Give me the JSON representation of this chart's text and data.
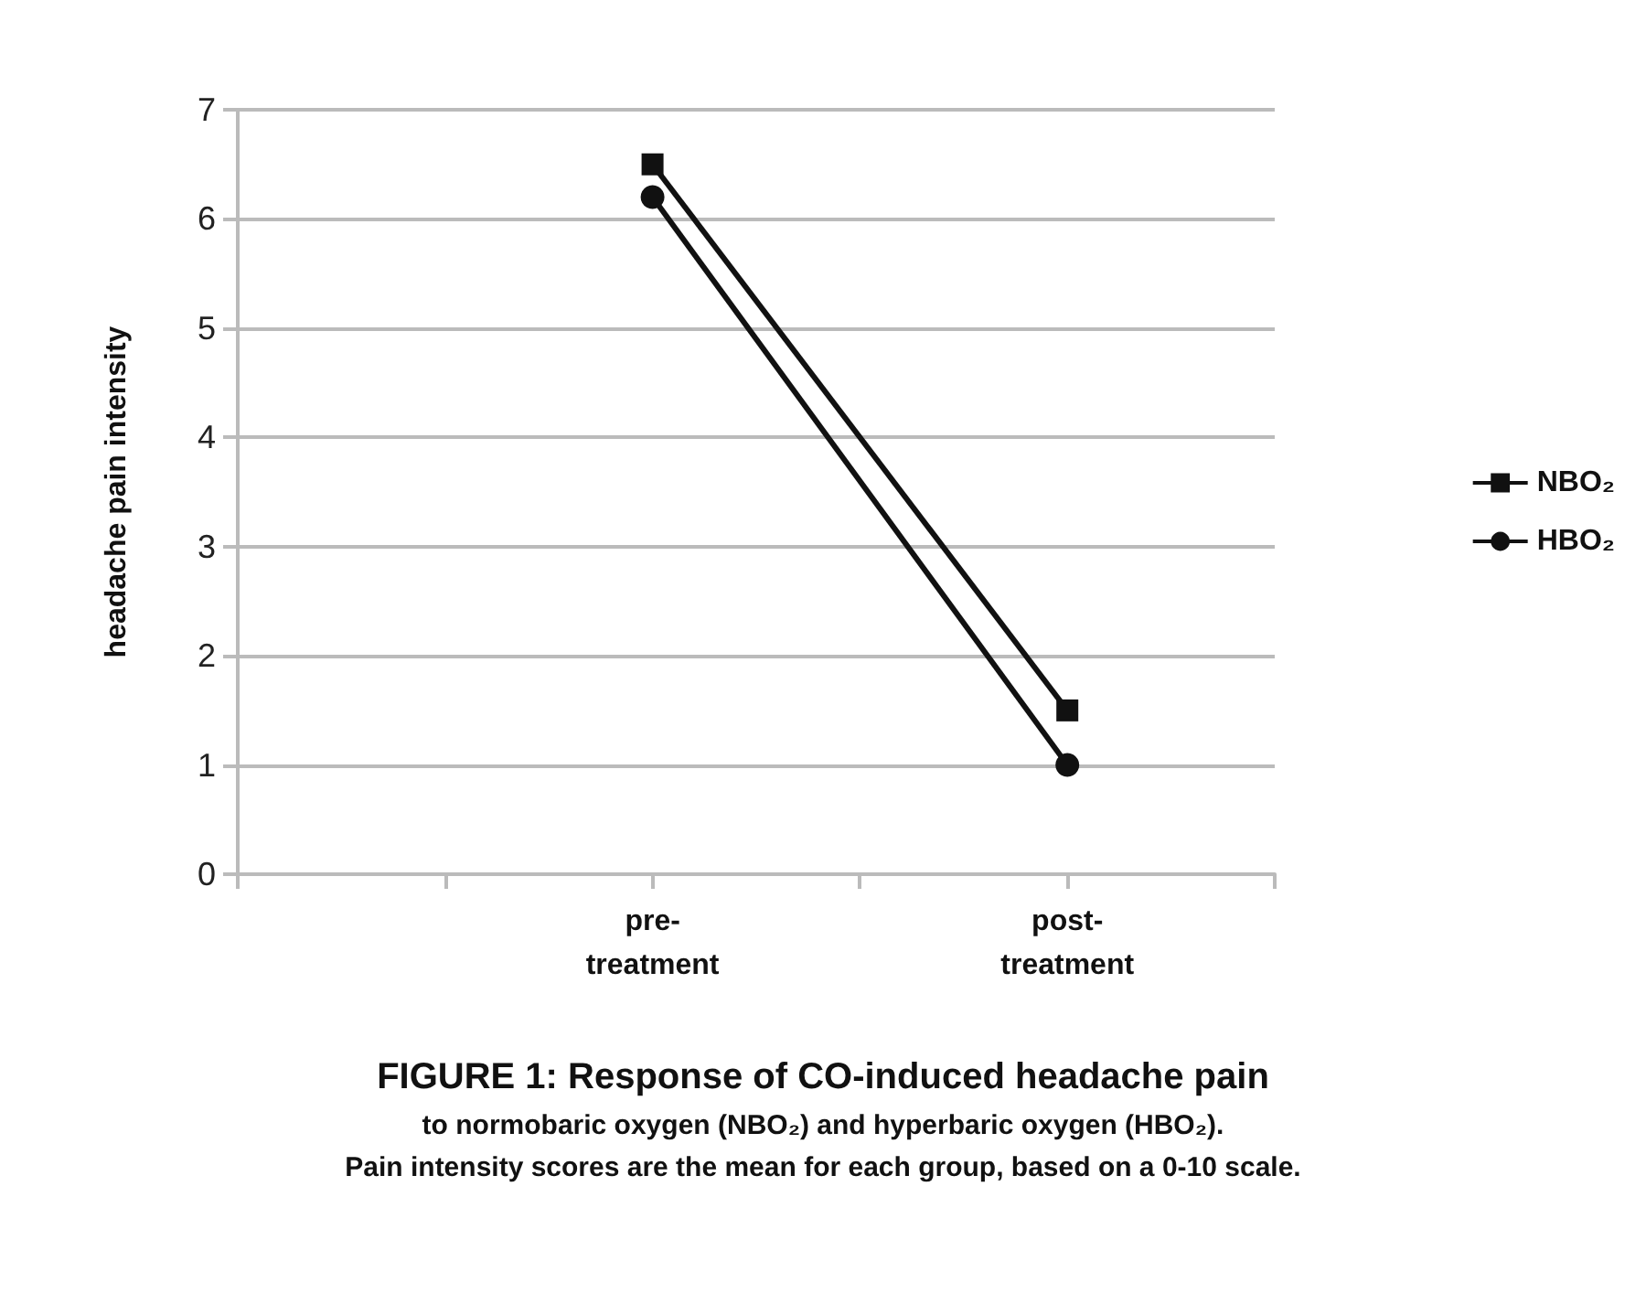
{
  "chart_data": {
    "type": "line",
    "title": "FIGURE 1: Response of CO-induced headache pain",
    "subtitle": "to normobaric oxygen (NBO₂) and hyperbaric oxygen (HBO₂).",
    "annotations": [
      "Pain intensity scores are the mean for each group, based on a 0-10 scale."
    ],
    "ylabel": "headache pain intensity",
    "categories": [
      null,
      null,
      "pre-\ntreatment",
      null,
      "post-\ntreatment",
      null
    ],
    "series": [
      {
        "name": "NBO₂",
        "color": "#111111",
        "marker": "square",
        "values": [
          null,
          null,
          6.5,
          null,
          1.5,
          null
        ]
      },
      {
        "name": "HBO₂",
        "color": "#111111",
        "marker": "circle",
        "values": [
          null,
          null,
          6.2,
          null,
          1.0,
          null
        ]
      }
    ],
    "ylim": [
      0,
      7
    ],
    "yticks": [
      0,
      1,
      2,
      3,
      4,
      5,
      6,
      7
    ],
    "grid": "y",
    "legend": "right",
    "line_style": "solid"
  }
}
